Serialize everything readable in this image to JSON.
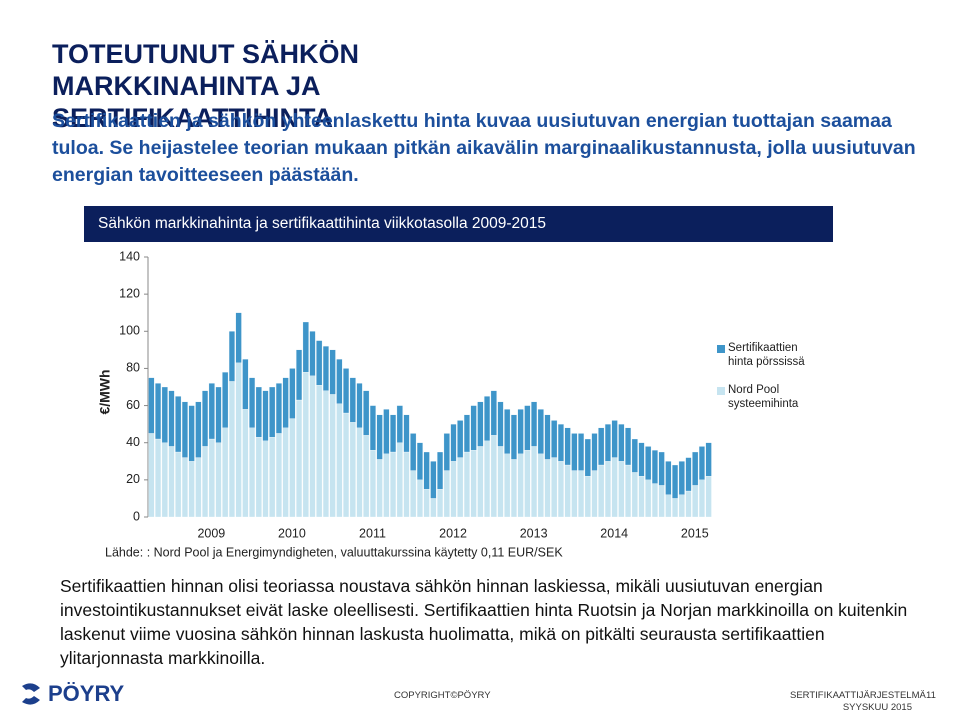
{
  "header": {
    "title": "TOTEUTUNUT SÄHKÖN MARKKINAHINTA JA SERTIFIKAATTIHINTA",
    "subtitle": "Sertifikaattien ja sähkön yhteenlaskettu hinta kuvaa uusiutuvan energian tuottajan saamaa tuloa. Se heijastelee teorian mukaan pitkän aikavälin marginaalikustannusta, jolla uusiutuvan energian tavoitteeseen päästään."
  },
  "chart_data": {
    "type": "bar",
    "stacked": true,
    "title": "Sähkön markkinahinta ja sertifikaattihinta viikkotasolla 2009-2015",
    "ylabel": "€/MWh",
    "source": "Lähde: : Nord Pool ja Energimyndigheten, valuuttakurssina käytetty 0,11 EUR/SEK",
    "legend": "right",
    "categories": [
      "2009",
      null,
      null,
      null,
      null,
      null,
      null,
      null,
      null,
      null,
      null,
      null,
      "2010",
      null,
      null,
      null,
      null,
      null,
      null,
      null,
      null,
      null,
      null,
      null,
      "2011",
      null,
      null,
      null,
      null,
      null,
      null,
      null,
      null,
      null,
      null,
      null,
      "2012",
      null,
      null,
      null,
      null,
      null,
      null,
      null,
      null,
      null,
      null,
      null,
      "2013",
      null,
      null,
      null,
      null,
      null,
      null,
      null,
      null,
      null,
      null,
      null,
      "2014",
      null,
      null,
      null,
      null,
      null,
      null,
      null,
      null,
      null,
      null,
      null,
      "2015",
      null,
      null,
      null,
      null,
      null,
      null,
      null,
      null,
      null,
      null,
      null
    ],
    "series": [
      {
        "name": "Sertifikaattien hinta pörssissä",
        "color": "#3e95c9",
        "values": [
          30,
          30,
          30,
          30,
          30,
          30,
          30,
          30,
          30,
          30,
          30,
          30,
          27,
          27,
          27,
          27,
          27,
          27,
          27,
          27,
          27,
          27,
          27,
          27,
          24,
          24,
          24,
          24,
          24,
          24,
          24,
          24,
          24,
          24,
          24,
          24,
          20,
          20,
          20,
          20,
          20,
          20,
          20,
          20,
          20,
          20,
          20,
          20,
          24,
          24,
          24,
          24,
          24,
          24,
          24,
          24,
          24,
          24,
          24,
          24,
          20,
          20,
          20,
          20,
          20,
          20,
          20,
          20,
          20,
          20,
          20,
          20,
          18,
          18,
          18,
          18,
          18,
          18,
          18,
          18,
          18,
          18,
          18,
          18
        ]
      },
      {
        "name": "Nord Pool systeemihinta",
        "color": "#c6e4f0",
        "values": [
          45,
          42,
          40,
          38,
          35,
          32,
          30,
          32,
          38,
          42,
          40,
          48,
          73,
          83,
          58,
          48,
          43,
          41,
          43,
          45,
          48,
          53,
          63,
          78,
          76,
          71,
          68,
          66,
          61,
          56,
          51,
          48,
          44,
          36,
          31,
          34,
          35,
          40,
          35,
          25,
          20,
          15,
          10,
          15,
          25,
          30,
          32,
          35,
          36,
          38,
          41,
          44,
          38,
          34,
          31,
          34,
          36,
          38,
          34,
          31,
          32,
          30,
          28,
          25,
          25,
          22,
          25,
          28,
          30,
          32,
          30,
          28,
          24,
          22,
          20,
          18,
          17,
          12,
          10,
          12,
          14,
          17,
          20,
          22
        ]
      }
    ],
    "ylim": [
      0,
      140
    ],
    "yticks": [
      0,
      20,
      40,
      60,
      80,
      100,
      120,
      140
    ]
  },
  "body": "Sertifikaattien hinnan olisi teoriassa noustava sähkön hinnan laskiessa, mikäli uusiutuvan energian investointikustannukset eivät laske oleellisesti. Sertifikaattien hinta Ruotsin ja Norjan markkinoilla on kuitenkin laskenut viime vuosina sähkön hinnan laskusta huolimatta, mikä on pitkälti seurausta sertifikaattien ylitarjonnasta markkinoilla.",
  "footer": {
    "logo": "PÖYRY",
    "copyright": "COPYRIGHT©PÖYRY",
    "topic": "SERTIFIKAATTIJÄRJESTELMÄ",
    "date": "SYYSKUU 2015",
    "page": "11"
  }
}
